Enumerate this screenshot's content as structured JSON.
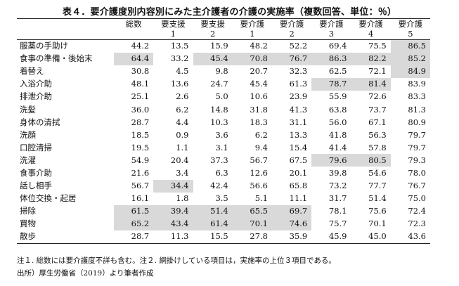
{
  "title": "表４．要介護度別内容別にみた主介護者の介護の実施率（複数回答、単位：％）",
  "columns": [
    {
      "line1": "総数",
      "line2": ""
    },
    {
      "line1": "要支援",
      "line2": "1"
    },
    {
      "line1": "要支援",
      "line2": "2"
    },
    {
      "line1": "要介護",
      "line2": "1"
    },
    {
      "line1": "要介護",
      "line2": "2"
    },
    {
      "line1": "要介護",
      "line2": "3"
    },
    {
      "line1": "要介護",
      "line2": "4"
    },
    {
      "line1": "要介護",
      "line2": "5"
    }
  ],
  "rows": [
    {
      "label": "服薬の手助け",
      "values": [
        "44.2",
        "13.5",
        "15.9",
        "48.2",
        "52.2",
        "69.4",
        "75.5",
        "86.5"
      ],
      "highlight": [
        7
      ]
    },
    {
      "label": "食事の準備・後始末",
      "values": [
        "64.4",
        "33.2",
        "45.4",
        "70.8",
        "76.7",
        "86.3",
        "82.2",
        "85.2"
      ],
      "highlight": [
        0,
        2,
        3,
        4,
        5,
        6,
        7
      ]
    },
    {
      "label": "着替え",
      "values": [
        "30.8",
        "4.5",
        "9.8",
        "20.7",
        "32.3",
        "62.5",
        "72.1",
        "84.9"
      ],
      "highlight": [
        7
      ]
    },
    {
      "label": "入浴介助",
      "values": [
        "48.1",
        "13.6",
        "24.7",
        "45.4",
        "61.3",
        "78.7",
        "81.4",
        "83.9"
      ],
      "highlight": [
        5,
        6
      ]
    },
    {
      "label": "排泄介助",
      "values": [
        "25.1",
        "2.6",
        "5.0",
        "10.6",
        "23.9",
        "55.9",
        "72.6",
        "83.3"
      ],
      "highlight": []
    },
    {
      "label": "洗髪",
      "values": [
        "36.0",
        "6.2",
        "14.8",
        "31.8",
        "41.3",
        "63.8",
        "73.7",
        "81.3"
      ],
      "highlight": []
    },
    {
      "label": "身体の清拭",
      "values": [
        "28.7",
        "4.4",
        "10.3",
        "18.3",
        "31.1",
        "56.0",
        "67.1",
        "80.9"
      ],
      "highlight": []
    },
    {
      "label": "洗顔",
      "values": [
        "18.5",
        "0.9",
        "3.6",
        "6.2",
        "13.3",
        "41.8",
        "56.3",
        "79.7"
      ],
      "highlight": []
    },
    {
      "label": "口腔清掃",
      "values": [
        "19.5",
        "1.1",
        "3.1",
        "9.4",
        "15.4",
        "41.4",
        "57.8",
        "79.7"
      ],
      "highlight": []
    },
    {
      "label": "洗濯",
      "values": [
        "54.9",
        "20.4",
        "37.3",
        "56.7",
        "67.5",
        "79.6",
        "80.5",
        "79.3"
      ],
      "highlight": [
        5,
        6
      ]
    },
    {
      "label": "食事介助",
      "values": [
        "21.6",
        "3.4",
        "6.3",
        "12.6",
        "20.1",
        "39.8",
        "54.6",
        "78.0"
      ],
      "highlight": []
    },
    {
      "label": "話し相手",
      "values": [
        "56.7",
        "34.4",
        "42.4",
        "56.6",
        "65.8",
        "73.2",
        "77.7",
        "76.7"
      ],
      "highlight": [
        1
      ]
    },
    {
      "label": "体位交換・起居",
      "values": [
        "16.1",
        "1.8",
        "3.5",
        "5.1",
        "11.1",
        "31.7",
        "51.4",
        "75.0"
      ],
      "highlight": []
    },
    {
      "label": "掃除",
      "values": [
        "61.5",
        "39.4",
        "51.4",
        "65.5",
        "69.7",
        "78.1",
        "75.6",
        "72.4"
      ],
      "highlight": [
        0,
        1,
        2,
        3,
        4
      ]
    },
    {
      "label": "買物",
      "values": [
        "65.2",
        "43.4",
        "61.4",
        "70.1",
        "74.6",
        "75.7",
        "70.1",
        "72.3"
      ],
      "highlight": [
        0,
        1,
        2,
        3,
        4
      ]
    },
    {
      "label": "散歩",
      "values": [
        "28.7",
        "11.3",
        "15.5",
        "27.8",
        "35.9",
        "45.9",
        "45.0",
        "43.6"
      ],
      "highlight": []
    }
  ],
  "notes": {
    "line1": "注１. 総数には要介護度不詳も含む。注２. 網掛けしている項目は，実施率の上位３項目である。",
    "line2": "出所）厚生労働省（2019）より筆者作成"
  },
  "colors": {
    "highlight": "#d9d9d9",
    "rule": "#222222"
  }
}
